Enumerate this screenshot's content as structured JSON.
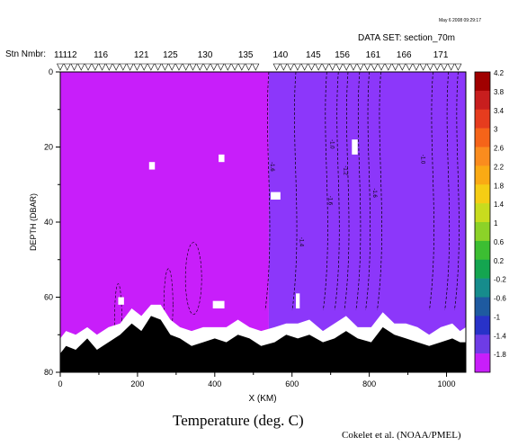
{
  "header": {
    "timestamp": "May 6 2008 09:29:17",
    "dataset": "DATA SET: section_70m",
    "station_label": "Stn Nmbr:"
  },
  "footer": {
    "title": "Temperature (deg. C)",
    "credit": "Cokelet et al. (NOAA/PMEL)"
  },
  "chart_data": {
    "type": "heatmap",
    "variable": "Temperature",
    "units": "deg. C",
    "xlabel": "X (KM)",
    "ylabel": "DEPTH (DBAR)",
    "xlim": [
      0,
      1050
    ],
    "ylim": [
      0,
      80
    ],
    "x_ticks": [
      0,
      200,
      400,
      600,
      800,
      1000
    ],
    "y_ticks": [
      0,
      20,
      40,
      60,
      80
    ],
    "y_reversed": true,
    "stations": {
      "labels": [
        "11112",
        "116",
        "121",
        "125",
        "130",
        "135",
        "140",
        "145",
        "156",
        "161",
        "166",
        "171"
      ],
      "label_x_km": [
        0,
        105,
        210,
        285,
        375,
        480,
        570,
        655,
        730,
        810,
        890,
        985
      ]
    },
    "colorbar": {
      "levels": [
        "4.2",
        "3.8",
        "3.4",
        "3",
        "2.6",
        "2.2",
        "1.8",
        "1.4",
        "1",
        "0.6",
        "0.2",
        "-0.2",
        "-0.6",
        "-1",
        "-1.4",
        "-1.8"
      ],
      "colors": [
        "#a00000",
        "#c81e1e",
        "#e63c1e",
        "#f56419",
        "#fa8c1e",
        "#faaa14",
        "#f5cd14",
        "#c8dc1e",
        "#8cd228",
        "#3cbe32",
        "#14a550",
        "#168c8c",
        "#1e5aa0",
        "#2832c8",
        "#6e3ce6",
        "#c81efa"
      ]
    },
    "regions": [
      {
        "x": [
          0,
          540
        ],
        "value": -1.8,
        "color": "#c81efa"
      },
      {
        "x": [
          540,
          1050
        ],
        "value": -1.6,
        "color": "#8c37fa"
      }
    ],
    "contour_labels": [
      "-1.6",
      "-1.4",
      "-1.6",
      "-1.0",
      "-1.2",
      "-1.0",
      "-1.6"
    ],
    "bathymetry": {
      "x": [
        0,
        15,
        40,
        70,
        95,
        125,
        155,
        185,
        210,
        235,
        260,
        285,
        310,
        340,
        370,
        400,
        430,
        460,
        490,
        520,
        555,
        585,
        615,
        645,
        680,
        710,
        740,
        770,
        805,
        835,
        865,
        895,
        925,
        955,
        985,
        1015,
        1035,
        1050
      ],
      "y": [
        75,
        73,
        74,
        71,
        74,
        72,
        70,
        67,
        69,
        65,
        66,
        70,
        71,
        73,
        72,
        71,
        72,
        70,
        71,
        73,
        72,
        70,
        71,
        70,
        72,
        71,
        69,
        71,
        72,
        68,
        70,
        71,
        72,
        73,
        72,
        71,
        72,
        72
      ]
    }
  }
}
